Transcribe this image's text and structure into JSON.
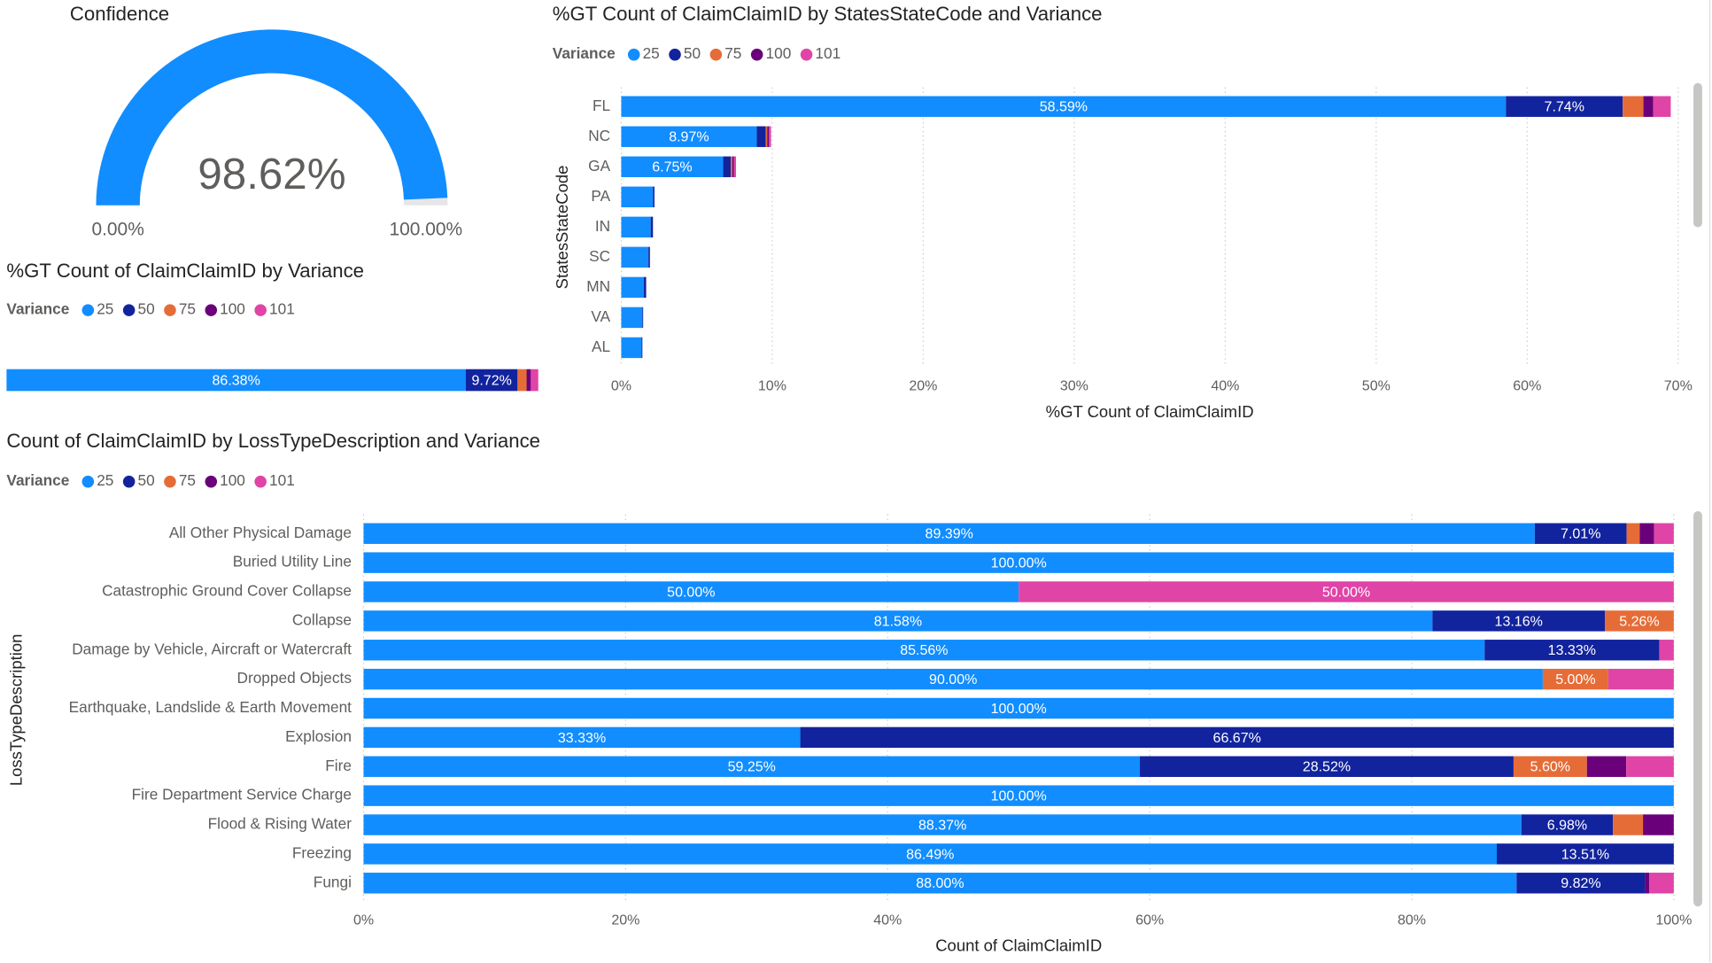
{
  "chart_data": [
    {
      "type": "gauge",
      "title": "Confidence",
      "value": 98.62,
      "value_label": "98.62%",
      "range_ticks": [
        {
          "value": 0,
          "label": "0.00%"
        },
        {
          "value": 100,
          "label": "100.00%"
        }
      ],
      "color": "#118DFF",
      "track_color": "#E6E6E6"
    },
    {
      "type": "stacked_bar",
      "title": "%GT Count of ClaimClaimID by Variance",
      "legend_title": "Variance",
      "categories": [
        null
      ],
      "xlim": [
        0,
        100
      ],
      "series": [
        {
          "name": "25",
          "color": "#118DFF",
          "values": [
            86.38
          ],
          "value_labels": [
            "86.38%"
          ]
        },
        {
          "name": "50",
          "color": "#12239E",
          "values": [
            9.72
          ],
          "value_labels": [
            "9.72%"
          ]
        },
        {
          "name": "75",
          "color": "#E66C37",
          "values": [
            1.7
          ],
          "value_labels": [
            null
          ]
        },
        {
          "name": "100",
          "color": "#6B007B",
          "values": [
            0.8
          ],
          "value_labels": [
            null
          ]
        },
        {
          "name": "101",
          "color": "#E044A7",
          "values": [
            1.4
          ],
          "value_labels": [
            null
          ]
        }
      ]
    },
    {
      "type": "stacked_bar",
      "title": "%GT Count of ClaimClaimID by StatesStateCode and Variance",
      "legend_title": "Variance",
      "x_label": "%GT Count of ClaimClaimID",
      "y_label": "StatesStateCode",
      "grid": true,
      "categories": [
        "FL",
        "NC",
        "GA",
        "PA",
        "IN",
        "SC",
        "MN",
        "VA",
        "AL"
      ],
      "xlim": [
        0,
        70
      ],
      "xticks": [
        {
          "value": 0,
          "label": "0%"
        },
        {
          "value": 10,
          "label": "10%"
        },
        {
          "value": 20,
          "label": "20%"
        },
        {
          "value": 30,
          "label": "30%"
        },
        {
          "value": 40,
          "label": "40%"
        },
        {
          "value": 50,
          "label": "50%"
        },
        {
          "value": 60,
          "label": "60%"
        },
        {
          "value": 70,
          "label": "70%"
        }
      ],
      "series": [
        {
          "name": "25",
          "color": "#118DFF",
          "values": [
            58.59,
            8.97,
            6.75,
            2.1,
            1.95,
            1.8,
            1.5,
            1.4,
            1.35
          ],
          "value_labels": [
            "58.59%",
            "8.97%",
            "6.75%",
            null,
            null,
            null,
            null,
            null,
            null
          ]
        },
        {
          "name": "50",
          "color": "#12239E",
          "values": [
            7.74,
            0.6,
            0.5,
            0.1,
            0.15,
            0.1,
            0.15,
            0.05,
            0.05
          ],
          "value_labels": [
            "7.74%",
            null,
            null,
            null,
            null,
            null,
            null,
            null,
            null
          ]
        },
        {
          "name": "75",
          "color": "#E66C37",
          "values": [
            1.37,
            0.1,
            0.1,
            0,
            0,
            0,
            0,
            0,
            0
          ],
          "value_labels": [
            null,
            null,
            null,
            null,
            null,
            null,
            null,
            null,
            null
          ]
        },
        {
          "name": "100",
          "color": "#6B007B",
          "values": [
            0.65,
            0.1,
            0.1,
            0,
            0,
            0,
            0,
            0,
            0
          ],
          "value_labels": [
            null,
            null,
            null,
            null,
            null,
            null,
            null,
            null,
            null
          ]
        },
        {
          "name": "101",
          "color": "#E044A7",
          "values": [
            1.16,
            0.15,
            0.15,
            0,
            0,
            0,
            0,
            0,
            0
          ],
          "value_labels": [
            null,
            null,
            null,
            null,
            null,
            null,
            null,
            null,
            null
          ]
        }
      ]
    },
    {
      "type": "stacked_bar",
      "title": "Count of ClaimClaimID by LossTypeDescription and Variance",
      "legend_title": "Variance",
      "x_label": "Count of ClaimClaimID",
      "y_label": "LossTypeDescription",
      "grid": true,
      "categories": [
        "All Other Physical Damage",
        "Buried Utility Line",
        "Catastrophic Ground Cover Collapse",
        "Collapse",
        "Damage by Vehicle, Aircraft or Watercraft",
        "Dropped Objects",
        "Earthquake, Landslide & Earth Movement",
        "Explosion",
        "Fire",
        "Fire Department Service Charge",
        "Flood & Rising Water",
        "Freezing",
        "Fungi"
      ],
      "xlim": [
        0,
        100
      ],
      "xticks": [
        {
          "value": 0,
          "label": "0%"
        },
        {
          "value": 20,
          "label": "20%"
        },
        {
          "value": 40,
          "label": "40%"
        },
        {
          "value": 60,
          "label": "60%"
        },
        {
          "value": 80,
          "label": "80%"
        },
        {
          "value": 100,
          "label": "100%"
        }
      ],
      "series": [
        {
          "name": "25",
          "color": "#118DFF",
          "values": [
            89.39,
            100,
            50,
            81.58,
            85.56,
            90,
            100,
            33.33,
            59.25,
            100,
            88.37,
            86.49,
            88
          ],
          "value_labels": [
            "89.39%",
            "100.00%",
            "50.00%",
            "81.58%",
            "85.56%",
            "90.00%",
            "100.00%",
            "33.33%",
            "59.25%",
            "100.00%",
            "88.37%",
            "86.49%",
            "88.00%"
          ]
        },
        {
          "name": "50",
          "color": "#12239E",
          "values": [
            7.01,
            0,
            0,
            13.16,
            13.33,
            0,
            0,
            66.67,
            28.52,
            0,
            6.98,
            13.51,
            9.82
          ],
          "value_labels": [
            "7.01%",
            null,
            null,
            "13.16%",
            "13.33%",
            null,
            null,
            "66.67%",
            "28.52%",
            null,
            "6.98%",
            "13.51%",
            "9.82%"
          ]
        },
        {
          "name": "75",
          "color": "#E66C37",
          "values": [
            1.0,
            0,
            0,
            5.26,
            0,
            5,
            0,
            0,
            5.6,
            0,
            2.3,
            0,
            0
          ],
          "value_labels": [
            null,
            null,
            null,
            "5.26%",
            null,
            "5.00%",
            null,
            null,
            "5.60%",
            null,
            null,
            null,
            null
          ]
        },
        {
          "name": "100",
          "color": "#6B007B",
          "values": [
            1.1,
            0,
            0,
            0,
            0,
            0,
            0,
            0,
            3.0,
            0,
            2.35,
            0,
            0.3
          ],
          "value_labels": [
            null,
            null,
            null,
            null,
            null,
            null,
            null,
            null,
            null,
            null,
            null,
            null,
            null
          ]
        },
        {
          "name": "101",
          "color": "#E044A7",
          "values": [
            1.5,
            0,
            50,
            0,
            1.11,
            5,
            0,
            0,
            3.63,
            0,
            0,
            0,
            1.88
          ],
          "value_labels": [
            null,
            null,
            "50.00%",
            null,
            null,
            null,
            null,
            null,
            null,
            null,
            null,
            null,
            null
          ]
        }
      ]
    }
  ]
}
